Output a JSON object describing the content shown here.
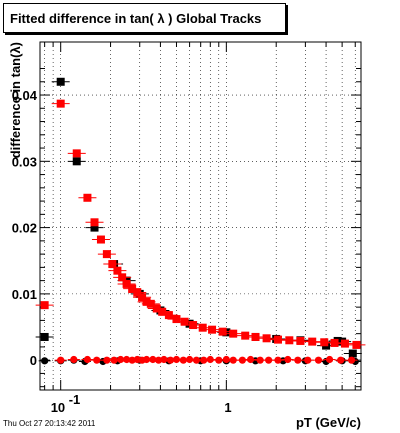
{
  "title": "Fitted difference in tan( λ )  Global Tracks",
  "footer": "Thu Oct 27 20:13:42 2011",
  "chart_data": {
    "type": "scatter",
    "title": "Fitted difference in tan( λ )  Global Tracks",
    "xlabel": "pT (GeV/c)",
    "ylabel": "difference in tan(λ)",
    "xscale": "log",
    "xlim": [
      0.075,
      6.5
    ],
    "ylim": [
      -0.0045,
      0.048
    ],
    "grid": true,
    "y_ticks": [
      "0",
      "0.01",
      "0.02",
      "0.03",
      "0.04"
    ],
    "y_tick_values": [
      0,
      0.01,
      0.02,
      0.03,
      0.04
    ],
    "x_tick_labels": [
      {
        "value": 0.1,
        "base": "10",
        "exp": "-1"
      },
      {
        "value": 1,
        "base": "1",
        "exp": ""
      }
    ],
    "series": [
      {
        "color": "#000000",
        "marker": "square",
        "values": [
          {
            "x": 0.08,
            "y": 0.0035
          },
          {
            "x": 0.1,
            "y": 0.042
          },
          {
            "x": 0.125,
            "y": 0.03
          },
          {
            "x": 0.16,
            "y": 0.02
          },
          {
            "x": 0.21,
            "y": 0.0145
          },
          {
            "x": 0.25,
            "y": 0.012
          },
          {
            "x": 0.3,
            "y": 0.01
          },
          {
            "x": 0.4,
            "y": 0.0075
          },
          {
            "x": 0.6,
            "y": 0.0055
          },
          {
            "x": 1.0,
            "y": 0.0042
          },
          {
            "x": 1.5,
            "y": 0.0035
          },
          {
            "x": 2.0,
            "y": 0.0032
          },
          {
            "x": 2.8,
            "y": 0.003
          },
          {
            "x": 4.0,
            "y": 0.0022
          },
          {
            "x": 4.7,
            "y": 0.0029
          },
          {
            "x": 5.0,
            "y": 0.0028
          },
          {
            "x": 5.8,
            "y": 0.001
          }
        ]
      },
      {
        "color": "#ff0000",
        "marker": "square",
        "values": [
          {
            "x": 0.08,
            "y": 0.0083
          },
          {
            "x": 0.1,
            "y": 0.0387
          },
          {
            "x": 0.125,
            "y": 0.0312
          },
          {
            "x": 0.145,
            "y": 0.0245
          },
          {
            "x": 0.16,
            "y": 0.0208
          },
          {
            "x": 0.175,
            "y": 0.0182
          },
          {
            "x": 0.19,
            "y": 0.016
          },
          {
            "x": 0.205,
            "y": 0.0145
          },
          {
            "x": 0.22,
            "y": 0.0135
          },
          {
            "x": 0.235,
            "y": 0.0125
          },
          {
            "x": 0.25,
            "y": 0.0115
          },
          {
            "x": 0.27,
            "y": 0.0108
          },
          {
            "x": 0.29,
            "y": 0.0102
          },
          {
            "x": 0.31,
            "y": 0.0095
          },
          {
            "x": 0.33,
            "y": 0.0088
          },
          {
            "x": 0.35,
            "y": 0.0085
          },
          {
            "x": 0.38,
            "y": 0.0078
          },
          {
            "x": 0.41,
            "y": 0.0073
          },
          {
            "x": 0.45,
            "y": 0.0068
          },
          {
            "x": 0.5,
            "y": 0.0062
          },
          {
            "x": 0.56,
            "y": 0.0058
          },
          {
            "x": 0.63,
            "y": 0.0053
          },
          {
            "x": 0.72,
            "y": 0.0049
          },
          {
            "x": 0.82,
            "y": 0.0046
          },
          {
            "x": 0.95,
            "y": 0.0043
          },
          {
            "x": 1.1,
            "y": 0.004
          },
          {
            "x": 1.3,
            "y": 0.0037
          },
          {
            "x": 1.5,
            "y": 0.0035
          },
          {
            "x": 1.75,
            "y": 0.0033
          },
          {
            "x": 2.05,
            "y": 0.0031
          },
          {
            "x": 2.4,
            "y": 0.003
          },
          {
            "x": 2.8,
            "y": 0.0029
          },
          {
            "x": 3.3,
            "y": 0.0028
          },
          {
            "x": 3.9,
            "y": 0.0027
          },
          {
            "x": 4.5,
            "y": 0.0026
          },
          {
            "x": 5.2,
            "y": 0.0025
          },
          {
            "x": 6.1,
            "y": 0.0023
          }
        ]
      },
      {
        "color": "#000000",
        "marker": "circle",
        "values": [
          {
            "x": 0.08,
            "y": -0.0001
          },
          {
            "x": 0.1,
            "y": -0.0001
          },
          {
            "x": 0.12,
            "y": 0.0
          },
          {
            "x": 0.14,
            "y": -0.0002
          },
          {
            "x": 0.18,
            "y": -0.0002
          },
          {
            "x": 0.22,
            "y": -0.0001
          },
          {
            "x": 0.3,
            "y": 0.0
          },
          {
            "x": 0.45,
            "y": -0.0001
          },
          {
            "x": 0.7,
            "y": -0.0001
          },
          {
            "x": 1.0,
            "y": -0.0001
          },
          {
            "x": 1.5,
            "y": -0.0001
          },
          {
            "x": 2.2,
            "y": -0.0001
          },
          {
            "x": 3.0,
            "y": -0.0001
          },
          {
            "x": 4.0,
            "y": -0.0002
          },
          {
            "x": 5.0,
            "y": -0.0001
          },
          {
            "x": 6.0,
            "y": -0.0002
          }
        ]
      },
      {
        "color": "#ff0000",
        "marker": "circle",
        "values": [
          {
            "x": 0.1,
            "y": 0.0
          },
          {
            "x": 0.12,
            "y": 0.0001
          },
          {
            "x": 0.145,
            "y": 0.0001
          },
          {
            "x": 0.165,
            "y": 0.0
          },
          {
            "x": 0.19,
            "y": 0.0
          },
          {
            "x": 0.21,
            "y": 0.0
          },
          {
            "x": 0.23,
            "y": 0.0001
          },
          {
            "x": 0.25,
            "y": 0.0001
          },
          {
            "x": 0.27,
            "y": 0.0
          },
          {
            "x": 0.29,
            "y": 0.0001
          },
          {
            "x": 0.31,
            "y": 0.0
          },
          {
            "x": 0.33,
            "y": 0.0001
          },
          {
            "x": 0.36,
            "y": 0.0001
          },
          {
            "x": 0.39,
            "y": 0.0
          },
          {
            "x": 0.42,
            "y": 0.0001
          },
          {
            "x": 0.46,
            "y": 0.0
          },
          {
            "x": 0.5,
            "y": 0.0001
          },
          {
            "x": 0.55,
            "y": 0.0
          },
          {
            "x": 0.6,
            "y": 0.0001
          },
          {
            "x": 0.66,
            "y": 0.0
          },
          {
            "x": 0.73,
            "y": 0.0
          },
          {
            "x": 0.8,
            "y": 0.0001
          },
          {
            "x": 0.9,
            "y": 0.0
          },
          {
            "x": 1.0,
            "y": 0.0001
          },
          {
            "x": 1.1,
            "y": 0.0
          },
          {
            "x": 1.25,
            "y": 0.0
          },
          {
            "x": 1.4,
            "y": 0.0001
          },
          {
            "x": 1.6,
            "y": 0.0
          },
          {
            "x": 1.8,
            "y": 0.0
          },
          {
            "x": 2.05,
            "y": 0.0
          },
          {
            "x": 2.35,
            "y": 0.0001
          },
          {
            "x": 2.7,
            "y": 0.0
          },
          {
            "x": 3.1,
            "y": 0.0
          },
          {
            "x": 3.6,
            "y": 0.0
          },
          {
            "x": 4.2,
            "y": 0.0001
          },
          {
            "x": 4.9,
            "y": 0.0
          },
          {
            "x": 5.7,
            "y": 0.0
          }
        ]
      }
    ]
  }
}
